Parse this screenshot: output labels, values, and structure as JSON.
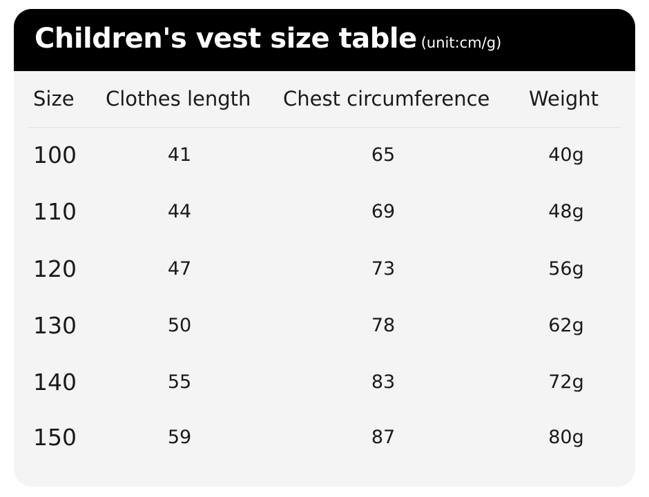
{
  "header": {
    "title": "Children's vest size table",
    "unit": "(unit:cm/g)"
  },
  "columns": {
    "size": "Size",
    "length": "Clothes length",
    "chest": "Chest circumference",
    "weight": "Weight"
  },
  "rows": [
    {
      "size": "100",
      "length": "41",
      "chest": "65",
      "weight": "40g"
    },
    {
      "size": "110",
      "length": "44",
      "chest": "69",
      "weight": "48g"
    },
    {
      "size": "120",
      "length": "47",
      "chest": "73",
      "weight": "56g"
    },
    {
      "size": "130",
      "length": "50",
      "chest": "78",
      "weight": "62g"
    },
    {
      "size": "140",
      "length": "55",
      "chest": "83",
      "weight": "72g"
    },
    {
      "size": "150",
      "length": "59",
      "chest": "87",
      "weight": "80g"
    }
  ],
  "colors": {
    "header_bg": "#000000",
    "header_text": "#ffffff",
    "card_bg": "#f4f4f4",
    "text": "#1a1a1a"
  }
}
